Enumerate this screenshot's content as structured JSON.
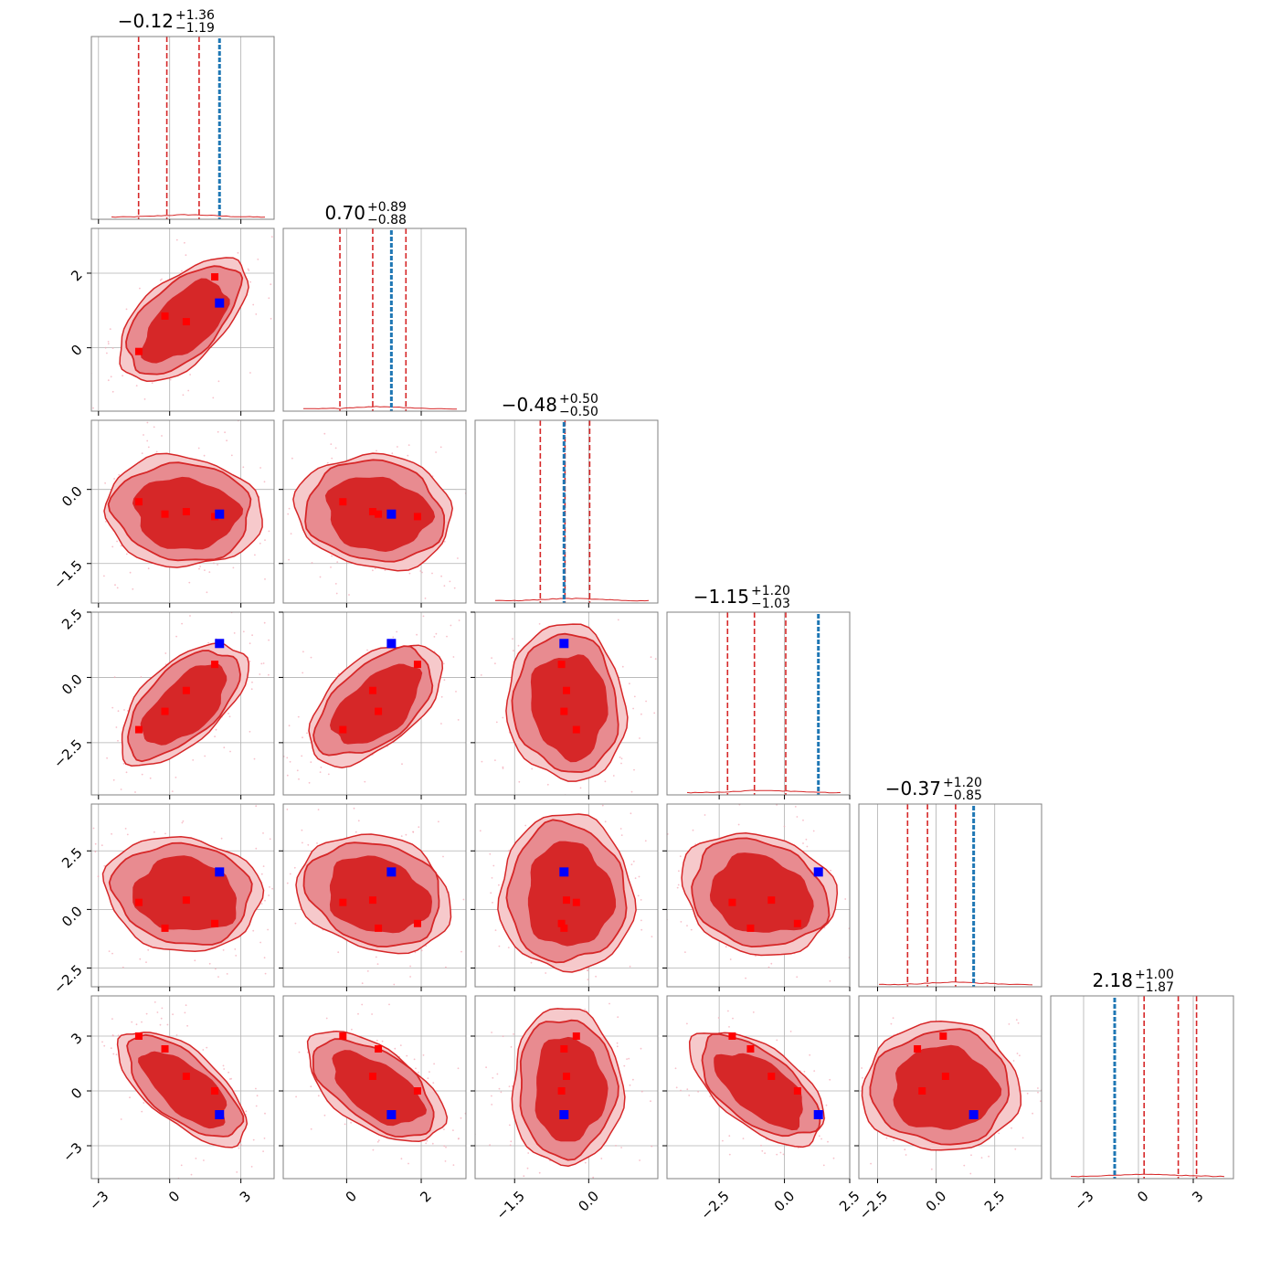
{
  "chart_data": {
    "type": "corner",
    "titles": [
      {
        "median": "−0.12",
        "plus": "+1.36",
        "minus": "−1.19"
      },
      {
        "median": "0.70",
        "plus": "+0.89",
        "minus": "−0.88"
      },
      {
        "median": "−0.48",
        "plus": "+0.50",
        "minus": "−0.50"
      },
      {
        "median": "−1.15",
        "plus": "+1.20",
        "minus": "−1.03"
      },
      {
        "median": "−0.37",
        "plus": "+1.20",
        "minus": "−0.85"
      },
      {
        "median": "2.18",
        "plus": "+1.00",
        "minus": "−1.87"
      }
    ],
    "ranges": [
      [
        -3.3,
        4.4
      ],
      [
        -1.7,
        3.2
      ],
      [
        -2.3,
        1.4
      ],
      [
        -4.5,
        2.5
      ],
      [
        -3.3,
        4.5
      ],
      [
        -4.8,
        5.2
      ]
    ],
    "x_ticks": [
      {
        "values": [
          -3,
          0,
          3
        ],
        "labels": [
          "−3",
          "0",
          "3"
        ]
      },
      {
        "values": [
          0,
          2
        ],
        "labels": [
          "0",
          "2"
        ]
      },
      {
        "values": [
          -1.5,
          0.0
        ],
        "labels": [
          "−1.5",
          "0.0"
        ]
      },
      {
        "values": [
          -2.5,
          0.0,
          2.5
        ],
        "labels": [
          "−2.5",
          "0.0",
          "2.5"
        ]
      },
      {
        "values": [
          -2.5,
          0.0,
          2.5
        ],
        "labels": [
          "−2.5",
          "0.0",
          "2.5"
        ]
      },
      {
        "values": [
          -3,
          0,
          3
        ],
        "labels": [
          "−3",
          "0",
          "3"
        ]
      }
    ],
    "y_ticks": [
      null,
      {
        "values": [
          0,
          2
        ],
        "labels": [
          "0",
          "2"
        ]
      },
      {
        "values": [
          -1.5,
          0.0
        ],
        "labels": [
          "−1.5",
          "0.0"
        ]
      },
      {
        "values": [
          -2.5,
          0.0,
          2.5
        ],
        "labels": [
          "−2.5",
          "0.0",
          "2.5"
        ]
      },
      {
        "values": [
          -2.5,
          0.0,
          2.5
        ],
        "labels": [
          "−2.5",
          "0.0",
          "2.5"
        ]
      },
      {
        "values": [
          -3,
          0,
          3
        ],
        "labels": [
          "−3",
          "0",
          "3"
        ]
      }
    ],
    "truth": [
      2.1,
      1.2,
      -0.5,
      1.3,
      1.6,
      -1.3
    ],
    "quantiles": [
      [
        -1.31,
        -0.12,
        1.24
      ],
      [
        -0.18,
        0.7,
        1.59
      ],
      [
        -0.98,
        -0.48,
        0.02
      ],
      [
        -2.18,
        -1.15,
        0.05
      ],
      [
        -1.22,
        -0.37,
        0.83
      ],
      [
        0.31,
        2.18,
        3.18
      ]
    ],
    "red_markers": [
      [
        -1.3,
        -0.2,
        0.7,
        1.9
      ],
      [
        -0.1,
        0.85,
        0.7,
        1.9
      ],
      [
        -0.25,
        -0.5,
        -0.45,
        -0.55
      ],
      [
        -2.0,
        -1.3,
        -0.5,
        0.5
      ],
      [
        0.3,
        -0.8,
        0.4,
        -0.6
      ],
      [
        3.0,
        2.3,
        0.8,
        0.0
      ]
    ],
    "colors": {
      "contour": "#d62728",
      "fill_outer": "#f6c9cb",
      "fill_mid": "#e88b90",
      "fill_inner": "#d62728",
      "truth_marker": "#0000ff",
      "truth_line": "#1f77b4",
      "marker": "#ff0000",
      "grid": "#b0b0b0"
    },
    "grid": true
  }
}
